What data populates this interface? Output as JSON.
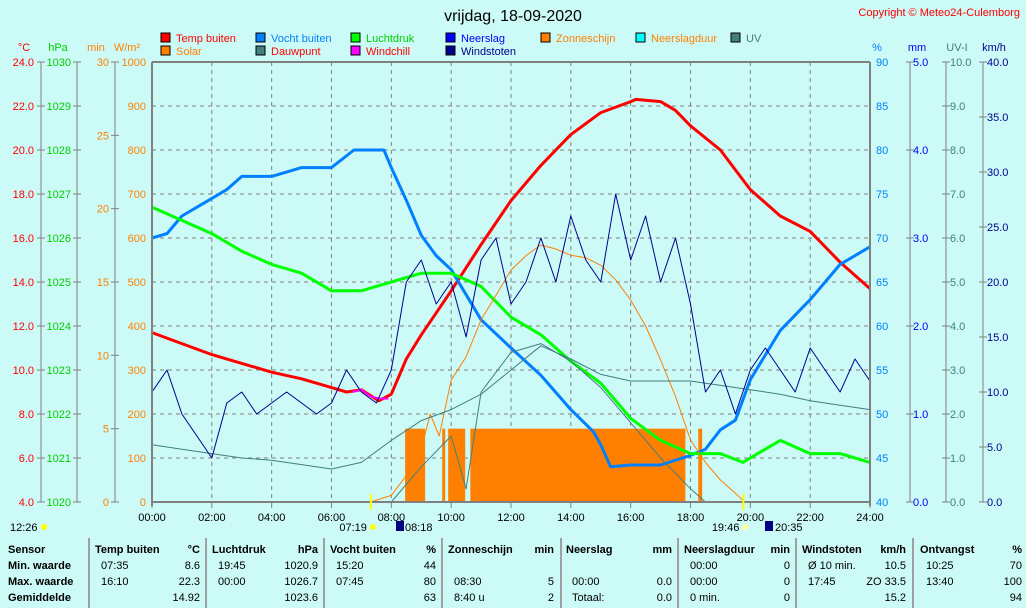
{
  "title": "vrijdag, 18-09-2020",
  "copyright": "Copyright © Meteo24-Culemborg",
  "legend": [
    {
      "label": "Temp buiten",
      "box": "#ff0000",
      "text": "#ff0000"
    },
    {
      "label": "Vocht buiten",
      "box": "#0080ff",
      "text": "#0080ff"
    },
    {
      "label": "Luchtdruk",
      "box": "#00ff00",
      "text": "#00d000"
    },
    {
      "label": "Neerslag",
      "box": "#0000ff",
      "text": "#0000ff"
    },
    {
      "label": "Zonneschijn",
      "box": "#ff8000",
      "text": "#ff8000"
    },
    {
      "label": "Neerslagduur",
      "box": "#00ffff",
      "text": "#ff8000"
    },
    {
      "label": "UV",
      "box": "#408080",
      "text": "#408080"
    },
    {
      "label": "Solar",
      "box": "#ff8000",
      "text": "#ff8000"
    },
    {
      "label": "Dauwpunt",
      "box": "#408080",
      "text": "#ff0000"
    },
    {
      "label": "Windchill",
      "box": "#ff00ff",
      "text": "#ff0000"
    },
    {
      "label": "Windstoten",
      "box": "#000090",
      "text": "#000090"
    }
  ],
  "sun": {
    "day_length": "12:26",
    "sunrise": "07:19",
    "sunset": "19:46",
    "dawn_icon_time": "08:18",
    "dusk_icon_time": "20:35"
  },
  "chart_data": {
    "type": "line",
    "title": "vrijdag, 18-09-2020",
    "x_ticks": [
      "00:00",
      "02:00",
      "04:00",
      "06:00",
      "08:00",
      "10:00",
      "12:00",
      "14:00",
      "16:00",
      "18:00",
      "20:00",
      "22:00",
      "24:00"
    ],
    "xlim": [
      0,
      24
    ],
    "grid": true,
    "axes": {
      "temp": {
        "unit": "°C",
        "min": 4,
        "max": 24,
        "color": "#ff0000",
        "labels": [
          "24.0",
          "22.0",
          "20.0",
          "18.0",
          "16.0",
          "14.0",
          "12.0",
          "10.0",
          "8.0",
          "6.0",
          "4.0"
        ]
      },
      "pressure": {
        "unit": "hPa",
        "min": 1020,
        "max": 1030,
        "color": "#00d000",
        "labels": [
          "1030",
          "1029",
          "1028",
          "1027",
          "1026",
          "1025",
          "1024",
          "1023",
          "1022",
          "1021",
          "1020"
        ]
      },
      "sunmin": {
        "unit": "min",
        "min": 0,
        "max": 30,
        "color": "#ff8000",
        "labels": [
          "30",
          "25",
          "20",
          "15",
          "10",
          "5",
          "0"
        ]
      },
      "solar": {
        "unit": "W/m²",
        "min": 0,
        "max": 1000,
        "color": "#ff8000",
        "labels": [
          "1000",
          "900",
          "800",
          "700",
          "600",
          "500",
          "400",
          "300",
          "200",
          "100",
          "0"
        ]
      },
      "humidity": {
        "unit": "%",
        "min": 40,
        "max": 90,
        "color": "#0080ff",
        "labels": [
          "90",
          "85",
          "80",
          "75",
          "70",
          "65",
          "60",
          "55",
          "50",
          "45",
          "40"
        ]
      },
      "rain": {
        "unit": "mm",
        "min": 0,
        "max": 5,
        "color": "#0000ff",
        "labels": [
          "5.0",
          "4.0",
          "3.0",
          "2.0",
          "1.0",
          "0.0"
        ]
      },
      "uv": {
        "unit": "UV-I",
        "min": 0,
        "max": 10,
        "color": "#408080",
        "labels": [
          "10.0",
          "9.0",
          "8.0",
          "7.0",
          "6.0",
          "5.0",
          "4.0",
          "3.0",
          "2.0",
          "1.0",
          "0.0"
        ]
      },
      "wind": {
        "unit": "km/h",
        "min": 0,
        "max": 40,
        "color": "#000090",
        "labels": [
          "40.0",
          "35.0",
          "30.0",
          "25.0",
          "20.0",
          "15.0",
          "10.0",
          "5.0",
          "0.0"
        ]
      }
    },
    "sunshine_blocks": {
      "value_min": 5,
      "intervals": [
        [
          8.46,
          9.13
        ],
        [
          9.7,
          9.8
        ],
        [
          9.9,
          10.47
        ],
        [
          10.64,
          17.83
        ],
        [
          18.26,
          18.39
        ]
      ]
    },
    "series": [
      {
        "name": "Temp buiten",
        "axis": "temp",
        "color": "#ff0000",
        "width": 3,
        "x": [
          0,
          1,
          2,
          3,
          4,
          5,
          6,
          6.5,
          7,
          7.58,
          8,
          8.5,
          9,
          10,
          11,
          12,
          13,
          14,
          15,
          16,
          16.17,
          17,
          17.5,
          18,
          19,
          20,
          21,
          22,
          23,
          24
        ],
        "y": [
          11.7,
          11.2,
          10.7,
          10.3,
          9.9,
          9.6,
          9.2,
          9.0,
          9.1,
          8.6,
          8.9,
          10.5,
          11.6,
          13.6,
          15.7,
          17.7,
          19.3,
          20.7,
          21.7,
          22.2,
          22.3,
          22.2,
          21.8,
          21.1,
          20.0,
          18.2,
          17.0,
          16.3,
          14.9,
          13.7
        ]
      },
      {
        "name": "Vocht buiten",
        "axis": "humidity",
        "color": "#0080ff",
        "width": 3,
        "x": [
          0,
          0.5,
          1,
          1.5,
          2,
          2.5,
          3,
          4,
          5,
          6,
          6.75,
          7.75,
          8,
          8.5,
          9,
          9.5,
          10,
          11,
          12,
          13,
          14,
          14.75,
          15,
          15.33,
          16,
          17,
          18,
          18.5,
          19,
          19.5,
          20,
          21,
          22,
          23,
          24
        ],
        "y": [
          70,
          70.5,
          72.5,
          73.5,
          74.5,
          75.5,
          77,
          77,
          78,
          78,
          80,
          80,
          78,
          74.3,
          70.3,
          68,
          66.4,
          60.7,
          57.5,
          54.4,
          50.5,
          48,
          46.5,
          44,
          44.2,
          44.2,
          45.3,
          46,
          48.2,
          49.3,
          53.9,
          59.5,
          63,
          67,
          69
        ]
      },
      {
        "name": "Luchtdruk",
        "axis": "pressure",
        "color": "#00ff00",
        "width": 3,
        "x": [
          0,
          1,
          2,
          3,
          4,
          5,
          6,
          7,
          8,
          9,
          10,
          11,
          12,
          13,
          14,
          15,
          16,
          17,
          18,
          19,
          19.75,
          20,
          21,
          22,
          23,
          24
        ],
        "y": [
          1026.7,
          1026.4,
          1026.1,
          1025.7,
          1025.4,
          1025.2,
          1024.8,
          1024.8,
          1025.0,
          1025.2,
          1025.2,
          1024.9,
          1024.2,
          1023.8,
          1023.2,
          1022.7,
          1021.9,
          1021.4,
          1021.1,
          1021.1,
          1020.9,
          1021.0,
          1021.4,
          1021.1,
          1021.1,
          1020.9
        ]
      },
      {
        "name": "Solar",
        "axis": "solar",
        "color": "#ff8000",
        "width": 1,
        "x": [
          7.3,
          8,
          8.5,
          9,
          9.3,
          9.6,
          10,
          10.5,
          11,
          11.5,
          12,
          12.5,
          13,
          13.5,
          14,
          14.5,
          15,
          15.5,
          16,
          16.5,
          17,
          17.5,
          18,
          18.5,
          19,
          19.5,
          19.8
        ],
        "y": [
          0,
          15,
          60,
          120,
          200,
          150,
          277,
          330,
          414,
          470,
          527,
          560,
          584,
          575,
          561,
          555,
          538,
          505,
          459,
          400,
          323,
          240,
          141,
          90,
          50,
          20,
          0
        ]
      },
      {
        "name": "Dauwpunt",
        "axis": "temp",
        "color": "#408080",
        "width": 1,
        "x": [
          0,
          1,
          2,
          3,
          4,
          5,
          6,
          7,
          8,
          9,
          10,
          11,
          12,
          13,
          14,
          15,
          16,
          17,
          18,
          19,
          20,
          21,
          22,
          23,
          24
        ],
        "y": [
          6.6,
          6.4,
          6.2,
          6.0,
          5.9,
          5.7,
          5.5,
          5.8,
          6.8,
          7.7,
          8.2,
          8.9,
          10.0,
          11.1,
          10.5,
          9.8,
          9.5,
          9.5,
          9.5,
          9.3,
          9.1,
          8.9,
          8.6,
          8.4,
          8.2
        ]
      },
      {
        "name": "UV",
        "axis": "uv",
        "color": "#408080",
        "width": 1,
        "x": [
          8,
          9,
          10,
          10.5,
          11,
          12,
          13,
          14,
          15,
          16,
          17,
          18,
          18.5
        ],
        "y": [
          0,
          0.8,
          1.5,
          0.3,
          2.5,
          3.4,
          3.6,
          3.2,
          2.6,
          1.8,
          1.0,
          0.3,
          0
        ]
      },
      {
        "name": "Windchill",
        "axis": "temp",
        "color": "#ff00ff",
        "width": 2,
        "x": [
          6.7,
          7,
          7.3,
          7.6,
          7.9
        ],
        "y": [
          9.0,
          9.1,
          8.8,
          8.7,
          8.7
        ]
      },
      {
        "name": "Windstoten",
        "axis": "wind",
        "color": "#000090",
        "width": 1,
        "x": [
          0,
          0.5,
          1,
          1.5,
          2,
          2.5,
          3,
          3.5,
          4,
          4.5,
          5,
          5.5,
          6,
          6.5,
          7,
          7.5,
          8,
          8.5,
          9,
          9.5,
          10,
          10.5,
          11,
          11.5,
          12,
          12.5,
          13,
          13.5,
          14,
          14.5,
          15,
          15.5,
          16,
          16.5,
          17,
          17.5,
          18,
          18.5,
          19,
          19.5,
          20,
          20.5,
          21,
          21.5,
          22,
          22.5,
          23,
          23.5,
          24
        ],
        "y": [
          10,
          12,
          8,
          6,
          4,
          9,
          10,
          8,
          9,
          10,
          9,
          8,
          9,
          12,
          10,
          9,
          12,
          20,
          22,
          18,
          20,
          15,
          22,
          24,
          18,
          20,
          24,
          20,
          26,
          22,
          20,
          28,
          22,
          26,
          20,
          24,
          18,
          10,
          12,
          8,
          12,
          14,
          12,
          10,
          14,
          12,
          10,
          13,
          11
        ]
      },
      {
        "name": "Neerslag",
        "axis": "rain",
        "color": "#0000ff",
        "width": 1,
        "x": [
          0,
          24
        ],
        "y": [
          0,
          0
        ]
      }
    ]
  },
  "table": {
    "columns": [
      {
        "title": "Sensor",
        "unit": ""
      },
      {
        "title": "Temp buiten",
        "unit": "°C"
      },
      {
        "title": "Luchtdruk",
        "unit": "hPa"
      },
      {
        "title": "Vocht buiten",
        "unit": "%"
      },
      {
        "title": "Zonneschijn",
        "unit": "min"
      },
      {
        "title": "Neerslag",
        "unit": "mm"
      },
      {
        "title": "Neerslagduur",
        "unit": "min"
      },
      {
        "title": "Windstoten",
        "unit": "km/h"
      },
      {
        "title": "Ontvangst",
        "unit": "%"
      }
    ],
    "rows": [
      {
        "label": "Min. waarde",
        "cells": [
          [
            "07:35",
            "8.6"
          ],
          [
            "19:45",
            "1020.9"
          ],
          [
            "15:20",
            "44"
          ],
          [
            "",
            ""
          ],
          [
            "",
            ""
          ],
          [
            "00:00",
            "0"
          ],
          [
            "Ø 10 min.",
            "10.5"
          ],
          [
            "10:25",
            "70"
          ]
        ]
      },
      {
        "label": "Max. waarde",
        "cells": [
          [
            "16:10",
            "22.3"
          ],
          [
            "00:00",
            "1026.7"
          ],
          [
            "07:45",
            "80"
          ],
          [
            "08:30",
            "5"
          ],
          [
            "00:00",
            "0.0"
          ],
          [
            "00:00",
            "0"
          ],
          [
            "17:45",
            "ZO 33.5"
          ],
          [
            "13:40",
            "100"
          ]
        ]
      },
      {
        "label": "Gemiddelde",
        "cells": [
          [
            "",
            "14.92"
          ],
          [
            "",
            "1023.6"
          ],
          [
            "",
            "63"
          ],
          [
            "8:40 u",
            "2"
          ],
          [
            "Totaal:",
            "0.0"
          ],
          [
            "0 min.",
            "0"
          ],
          [
            "",
            "15.2"
          ],
          [
            "",
            "94"
          ]
        ]
      }
    ]
  }
}
